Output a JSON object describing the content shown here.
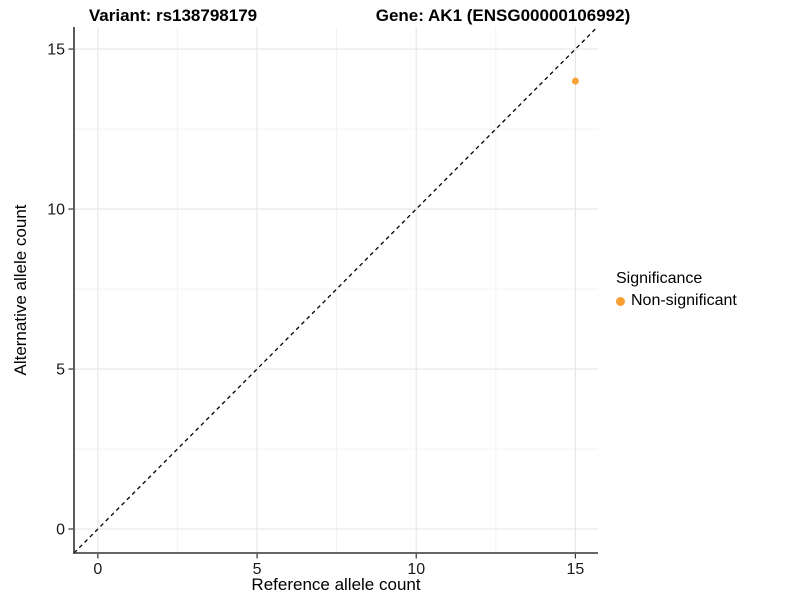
{
  "chart_data": {
    "type": "scatter",
    "title_left": "Variant: rs138798179",
    "title_right": "Gene: AK1 (ENSG00000106992)",
    "xlabel": "Reference allele count",
    "ylabel": "Alternative allele count",
    "xlim": [
      -0.75,
      15.71
    ],
    "ylim": [
      -0.75,
      15.69
    ],
    "x_ticks": [
      0,
      5,
      10,
      15
    ],
    "y_ticks": [
      0,
      5,
      10,
      15
    ],
    "x_minor_ticks": [
      2.5,
      7.5,
      12.5
    ],
    "y_minor_ticks": [
      2.5,
      7.5,
      12.5
    ],
    "grid": true,
    "reference_line": {
      "type": "identity",
      "style": "dashed",
      "color": "#000000"
    },
    "series": [
      {
        "name": "Non-significant",
        "color": "#F9A032",
        "points": [
          {
            "x": 15,
            "y": 14
          }
        ]
      }
    ],
    "legend": {
      "title": "Significance",
      "position": "right",
      "items": [
        {
          "label": "Non-significant",
          "color": "#F9A032"
        }
      ]
    },
    "colors": {
      "major_grid": "#e6e6e6",
      "minor_grid": "#f3f3f3",
      "axis_line": "#333333",
      "tick_text": "#1a1a1a"
    }
  }
}
